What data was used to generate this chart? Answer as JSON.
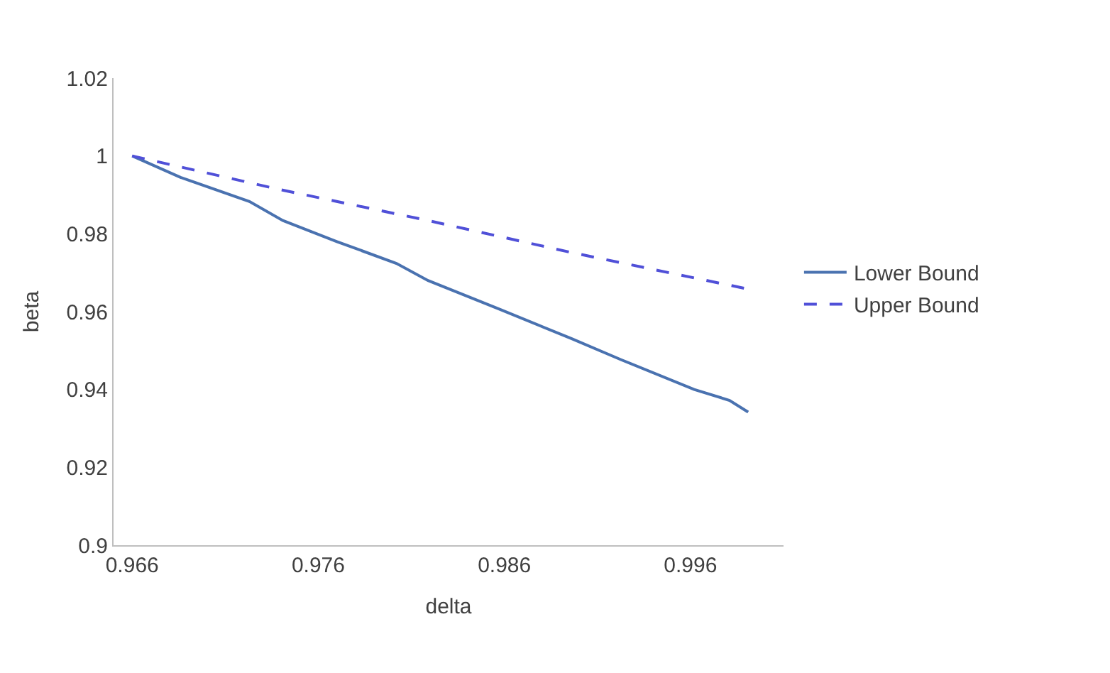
{
  "chart_data": {
    "type": "line",
    "xlabel": "delta",
    "ylabel": "beta",
    "xlim": [
      0.965,
      1.001
    ],
    "xticks": [
      0.966,
      0.976,
      0.986,
      0.996
    ],
    "ylim": [
      0.9,
      1.02
    ],
    "yticks": [
      0.9,
      0.92,
      0.94,
      0.96,
      0.98,
      1,
      1.02
    ],
    "grid": false,
    "legend": "right",
    "marker": "none",
    "series": [
      {
        "name": "Lower Bound",
        "color": "#4a72b0",
        "line_style": "solid",
        "x": [
          0.966,
          0.9686,
          0.9723,
          0.9741,
          0.977,
          0.9802,
          0.9819,
          0.9857,
          0.9896,
          0.9923,
          0.9962,
          0.9981,
          0.9991
        ],
        "values": [
          1.0,
          0.9945,
          0.9883,
          0.9834,
          0.978,
          0.9724,
          0.968,
          0.9607,
          0.9531,
          0.9476,
          0.94,
          0.9372,
          0.9342
        ]
      },
      {
        "name": "Upper Bound",
        "color": "#5050d8",
        "line_style": "dashed",
        "x": [
          0.966,
          0.9739,
          0.9819,
          0.9896,
          0.9991
        ],
        "values": [
          1.0,
          0.9914,
          0.9834,
          0.9752,
          0.9658
        ]
      }
    ]
  }
}
